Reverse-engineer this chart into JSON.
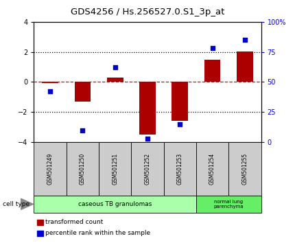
{
  "title": "GDS4256 / Hs.256527.0.S1_3p_at",
  "samples": [
    "GSM501249",
    "GSM501250",
    "GSM501251",
    "GSM501252",
    "GSM501253",
    "GSM501254",
    "GSM501255"
  ],
  "transformed_count": [
    -0.05,
    -1.3,
    0.3,
    -3.5,
    -2.6,
    1.5,
    2.05
  ],
  "percentile_rank": [
    42,
    10,
    62,
    3,
    15,
    78,
    85
  ],
  "ylim_left": [
    -4,
    4
  ],
  "ylim_right": [
    0,
    100
  ],
  "yticks_left": [
    -4,
    -2,
    0,
    2,
    4
  ],
  "yticks_right": [
    0,
    25,
    50,
    75,
    100
  ],
  "ytick_labels_right": [
    "0",
    "25",
    "50",
    "75",
    "100%"
  ],
  "bar_color": "#aa0000",
  "scatter_color": "#0000cc",
  "group1_label": "caseous TB granulomas",
  "group1_samples": 5,
  "group2_label": "normal lung\nparenchyma",
  "group2_samples": 2,
  "group1_color": "#aaffaa",
  "group2_color": "#66ee66",
  "cell_type_label": "cell type",
  "legend_bar_label": "transformed count",
  "legend_scatter_label": "percentile rank within the sample",
  "bg_color": "#ffffff",
  "tick_label_area_color": "#cccccc",
  "axis_fontsize": 7,
  "title_fontsize": 9.5
}
